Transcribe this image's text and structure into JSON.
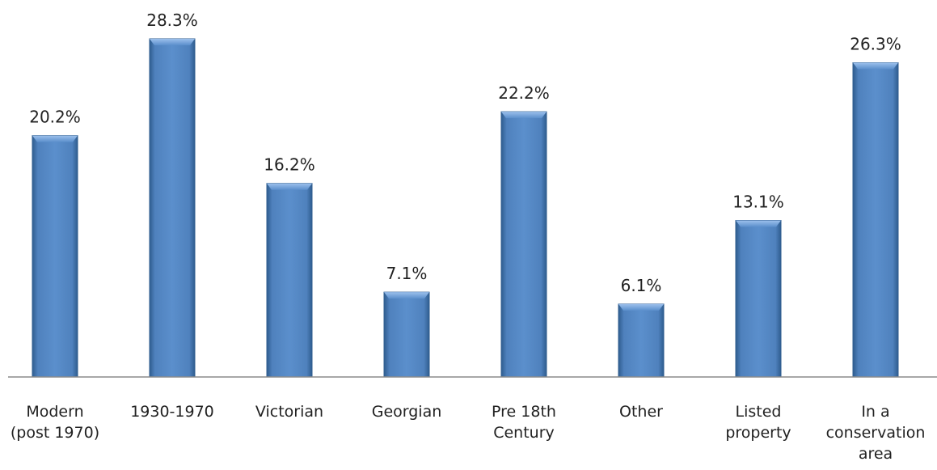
{
  "chart_data": {
    "type": "bar",
    "categories": [
      [
        "Modern",
        "(post 1970)"
      ],
      [
        "1930-1970"
      ],
      [
        "Victorian"
      ],
      [
        "Georgian"
      ],
      [
        "Pre 18th",
        "Century"
      ],
      [
        "Other"
      ],
      [
        "Listed",
        "property"
      ],
      [
        "In a",
        "conservation",
        "area"
      ]
    ],
    "values": [
      20.2,
      28.3,
      16.2,
      7.1,
      22.2,
      6.1,
      13.1,
      26.3
    ],
    "value_labels": [
      "20.2%",
      "28.3%",
      "16.2%",
      "7.1%",
      "22.2%",
      "6.1%",
      "13.1%",
      "26.3%"
    ],
    "ylim": [
      0,
      28.3
    ],
    "grid": false,
    "legend": "none",
    "colors": {
      "bar": "#4f81bd",
      "bar_dark": "#2f5d8f",
      "bar_light": "#8fb4e3",
      "axis": "#8c8c8c"
    }
  }
}
